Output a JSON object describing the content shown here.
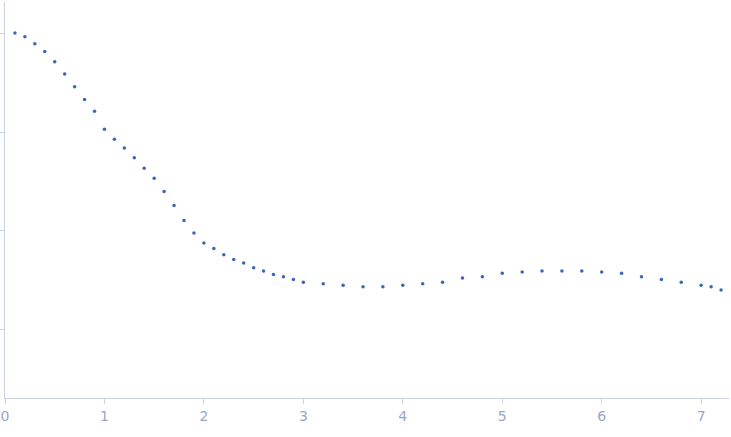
{
  "chart_data": {
    "type": "scatter",
    "log": "y",
    "tick_labels": "x",
    "grid": false,
    "marker": "circle",
    "color": "#3a66b8",
    "x": [
      0.1,
      0.2,
      0.3,
      0.4,
      0.5,
      0.6,
      0.7,
      0.8,
      0.9,
      1.0,
      1.1,
      1.2,
      1.3,
      1.4,
      1.5,
      1.6,
      1.7,
      1.8,
      1.9,
      2.0,
      2.1,
      2.2,
      2.3,
      2.4,
      2.5,
      2.6,
      2.7,
      2.8,
      2.9,
      3.0,
      3.2,
      3.4,
      3.6,
      3.8,
      4.0,
      4.2,
      4.4,
      4.6,
      4.8,
      5.0,
      5.2,
      5.4,
      5.6,
      5.8,
      6.0,
      6.2,
      6.4,
      6.6,
      6.8,
      7.0,
      7.1,
      7.2
    ],
    "values": [
      1.02,
      0.93,
      0.79,
      0.66,
      0.52,
      0.39,
      0.29,
      0.215,
      0.163,
      0.107,
      0.085,
      0.069,
      0.055,
      0.043,
      0.034,
      0.025,
      0.018,
      0.0127,
      0.0095,
      0.0075,
      0.0066,
      0.0057,
      0.0051,
      0.0047,
      0.0042,
      0.0039,
      0.0036,
      0.0034,
      0.0032,
      0.003,
      0.0029,
      0.0028,
      0.0027,
      0.0027,
      0.0028,
      0.0029,
      0.003,
      0.0033,
      0.0034,
      0.0037,
      0.0038,
      0.0039,
      0.0039,
      0.0039,
      0.0038,
      0.0037,
      0.0034,
      0.0032,
      0.003,
      0.0028,
      0.0027,
      0.0025
    ],
    "xlim": [
      0,
      7.28
    ],
    "xticks": [
      0,
      1,
      2,
      3,
      4,
      5,
      6,
      7
    ],
    "ylim": [
      0.0002,
      2.1
    ],
    "yticks": [
      0.001,
      0.01,
      0.1,
      1
    ]
  }
}
